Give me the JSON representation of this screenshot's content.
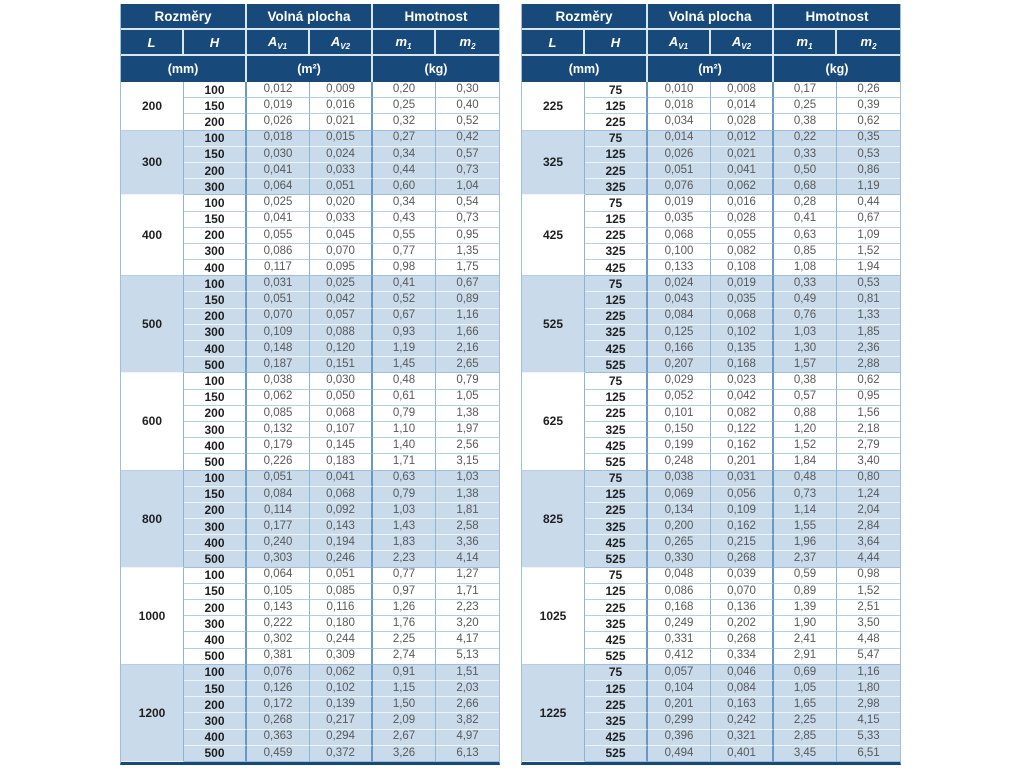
{
  "header": {
    "rozmery": "Rozměry",
    "volna_plocha": "Volná plocha",
    "hmotnost": "Hmotnost",
    "col_L": "L",
    "col_H": "H",
    "col_A": "A",
    "sub_V1": "V1",
    "sub_V2": "V2",
    "col_m": "m",
    "sub_1": "1",
    "sub_2": "2",
    "unit_mm": "(mm)",
    "unit_m2": "(m²)",
    "unit_kg": "(kg)"
  },
  "colors": {
    "header_bg": "#17497B",
    "header_text": "#FFFFFF",
    "alt_row_bg": "#C9DBEB",
    "grid_line": "#8AB5D8",
    "section_line": "#6699C4",
    "value_text": "#59595B",
    "dimension_text": "#1F1F1F",
    "bottom_border": "#17497B"
  },
  "tables": [
    {
      "groups": [
        {
          "L": "200",
          "rows": [
            [
              "100",
              "0,012",
              "0,009",
              "0,20",
              "0,30"
            ],
            [
              "150",
              "0,019",
              "0,016",
              "0,25",
              "0,40"
            ],
            [
              "200",
              "0,026",
              "0,021",
              "0,32",
              "0,52"
            ]
          ]
        },
        {
          "L": "300",
          "rows": [
            [
              "100",
              "0,018",
              "0,015",
              "0,27",
              "0,42"
            ],
            [
              "150",
              "0,030",
              "0,024",
              "0,34",
              "0,57"
            ],
            [
              "200",
              "0,041",
              "0,033",
              "0,44",
              "0,73"
            ],
            [
              "300",
              "0,064",
              "0,051",
              "0,60",
              "1,04"
            ]
          ]
        },
        {
          "L": "400",
          "rows": [
            [
              "100",
              "0,025",
              "0,020",
              "0,34",
              "0,54"
            ],
            [
              "150",
              "0,041",
              "0,033",
              "0,43",
              "0,73"
            ],
            [
              "200",
              "0,055",
              "0,045",
              "0,55",
              "0,95"
            ],
            [
              "300",
              "0,086",
              "0,070",
              "0,77",
              "1,35"
            ],
            [
              "400",
              "0,117",
              "0,095",
              "0,98",
              "1,75"
            ]
          ]
        },
        {
          "L": "500",
          "rows": [
            [
              "100",
              "0,031",
              "0,025",
              "0,41",
              "0,67"
            ],
            [
              "150",
              "0,051",
              "0,042",
              "0,52",
              "0,89"
            ],
            [
              "200",
              "0,070",
              "0,057",
              "0,67",
              "1,16"
            ],
            [
              "300",
              "0,109",
              "0,088",
              "0,93",
              "1,66"
            ],
            [
              "400",
              "0,148",
              "0,120",
              "1,19",
              "2,16"
            ],
            [
              "500",
              "0,187",
              "0,151",
              "1,45",
              "2,65"
            ]
          ]
        },
        {
          "L": "600",
          "rows": [
            [
              "100",
              "0,038",
              "0,030",
              "0,48",
              "0,79"
            ],
            [
              "150",
              "0,062",
              "0,050",
              "0,61",
              "1,05"
            ],
            [
              "200",
              "0,085",
              "0,068",
              "0,79",
              "1,38"
            ],
            [
              "300",
              "0,132",
              "0,107",
              "1,10",
              "1,97"
            ],
            [
              "400",
              "0,179",
              "0,145",
              "1,40",
              "2,56"
            ],
            [
              "500",
              "0,226",
              "0,183",
              "1,71",
              "3,15"
            ]
          ]
        },
        {
          "L": "800",
          "rows": [
            [
              "100",
              "0,051",
              "0,041",
              "0,63",
              "1,03"
            ],
            [
              "150",
              "0,084",
              "0,068",
              "0,79",
              "1,38"
            ],
            [
              "200",
              "0,114",
              "0,092",
              "1,03",
              "1,81"
            ],
            [
              "300",
              "0,177",
              "0,143",
              "1,43",
              "2,58"
            ],
            [
              "400",
              "0,240",
              "0,194",
              "1,83",
              "3,36"
            ],
            [
              "500",
              "0,303",
              "0,246",
              "2,23",
              "4,14"
            ]
          ]
        },
        {
          "L": "1000",
          "rows": [
            [
              "100",
              "0,064",
              "0,051",
              "0,77",
              "1,27"
            ],
            [
              "150",
              "0,105",
              "0,085",
              "0,97",
              "1,71"
            ],
            [
              "200",
              "0,143",
              "0,116",
              "1,26",
              "2,23"
            ],
            [
              "300",
              "0,222",
              "0,180",
              "1,76",
              "3,20"
            ],
            [
              "400",
              "0,302",
              "0,244",
              "2,25",
              "4,17"
            ],
            [
              "500",
              "0,381",
              "0,309",
              "2,74",
              "5,13"
            ]
          ]
        },
        {
          "L": "1200",
          "rows": [
            [
              "100",
              "0,076",
              "0,062",
              "0,91",
              "1,51"
            ],
            [
              "150",
              "0,126",
              "0,102",
              "1,15",
              "2,03"
            ],
            [
              "200",
              "0,172",
              "0,139",
              "1,50",
              "2,66"
            ],
            [
              "300",
              "0,268",
              "0,217",
              "2,09",
              "3,82"
            ],
            [
              "400",
              "0,363",
              "0,294",
              "2,67",
              "4,97"
            ],
            [
              "500",
              "0,459",
              "0,372",
              "3,26",
              "6,13"
            ]
          ]
        }
      ]
    },
    {
      "groups": [
        {
          "L": "225",
          "rows": [
            [
              "75",
              "0,010",
              "0,008",
              "0,17",
              "0,26"
            ],
            [
              "125",
              "0,018",
              "0,014",
              "0,25",
              "0,39"
            ],
            [
              "225",
              "0,034",
              "0,028",
              "0,38",
              "0,62"
            ]
          ]
        },
        {
          "L": "325",
          "rows": [
            [
              "75",
              "0,014",
              "0,012",
              "0,22",
              "0,35"
            ],
            [
              "125",
              "0,026",
              "0,021",
              "0,33",
              "0,53"
            ],
            [
              "225",
              "0,051",
              "0,041",
              "0,50",
              "0,86"
            ],
            [
              "325",
              "0,076",
              "0,062",
              "0,68",
              "1,19"
            ]
          ]
        },
        {
          "L": "425",
          "rows": [
            [
              "75",
              "0,019",
              "0,016",
              "0,28",
              "0,44"
            ],
            [
              "125",
              "0,035",
              "0,028",
              "0,41",
              "0,67"
            ],
            [
              "225",
              "0,068",
              "0,055",
              "0,63",
              "1,09"
            ],
            [
              "325",
              "0,100",
              "0,082",
              "0,85",
              "1,52"
            ],
            [
              "425",
              "0,133",
              "0,108",
              "1,08",
              "1,94"
            ]
          ]
        },
        {
          "L": "525",
          "rows": [
            [
              "75",
              "0,024",
              "0,019",
              "0,33",
              "0,53"
            ],
            [
              "125",
              "0,043",
              "0,035",
              "0,49",
              "0,81"
            ],
            [
              "225",
              "0,084",
              "0,068",
              "0,76",
              "1,33"
            ],
            [
              "325",
              "0,125",
              "0,102",
              "1,03",
              "1,85"
            ],
            [
              "425",
              "0,166",
              "0,135",
              "1,30",
              "2,36"
            ],
            [
              "525",
              "0,207",
              "0,168",
              "1,57",
              "2,88"
            ]
          ]
        },
        {
          "L": "625",
          "rows": [
            [
              "75",
              "0,029",
              "0,023",
              "0,38",
              "0,62"
            ],
            [
              "125",
              "0,052",
              "0,042",
              "0,57",
              "0,95"
            ],
            [
              "225",
              "0,101",
              "0,082",
              "0,88",
              "1,56"
            ],
            [
              "325",
              "0,150",
              "0,122",
              "1,20",
              "2,18"
            ],
            [
              "425",
              "0,199",
              "0,162",
              "1,52",
              "2,79"
            ],
            [
              "525",
              "0,248",
              "0,201",
              "1,84",
              "3,40"
            ]
          ]
        },
        {
          "L": "825",
          "rows": [
            [
              "75",
              "0,038",
              "0,031",
              "0,48",
              "0,80"
            ],
            [
              "125",
              "0,069",
              "0,056",
              "0,73",
              "1,24"
            ],
            [
              "225",
              "0,134",
              "0,109",
              "1,14",
              "2,04"
            ],
            [
              "325",
              "0,200",
              "0,162",
              "1,55",
              "2,84"
            ],
            [
              "425",
              "0,265",
              "0,215",
              "1,96",
              "3,64"
            ],
            [
              "525",
              "0,330",
              "0,268",
              "2,37",
              "4,44"
            ]
          ]
        },
        {
          "L": "1025",
          "rows": [
            [
              "75",
              "0,048",
              "0,039",
              "0,59",
              "0,98"
            ],
            [
              "125",
              "0,086",
              "0,070",
              "0,89",
              "1,52"
            ],
            [
              "225",
              "0,168",
              "0,136",
              "1,39",
              "2,51"
            ],
            [
              "325",
              "0,249",
              "0,202",
              "1,90",
              "3,50"
            ],
            [
              "425",
              "0,331",
              "0,268",
              "2,41",
              "4,48"
            ],
            [
              "525",
              "0,412",
              "0,334",
              "2,91",
              "5,47"
            ]
          ]
        },
        {
          "L": "1225",
          "rows": [
            [
              "75",
              "0,057",
              "0,046",
              "0,69",
              "1,16"
            ],
            [
              "125",
              "0,104",
              "0,084",
              "1,05",
              "1,80"
            ],
            [
              "225",
              "0,201",
              "0,163",
              "1,65",
              "2,98"
            ],
            [
              "325",
              "0,299",
              "0,242",
              "2,25",
              "4,15"
            ],
            [
              "425",
              "0,396",
              "0,321",
              "2,85",
              "5,33"
            ],
            [
              "525",
              "0,494",
              "0,401",
              "3,45",
              "6,51"
            ]
          ]
        }
      ]
    }
  ]
}
